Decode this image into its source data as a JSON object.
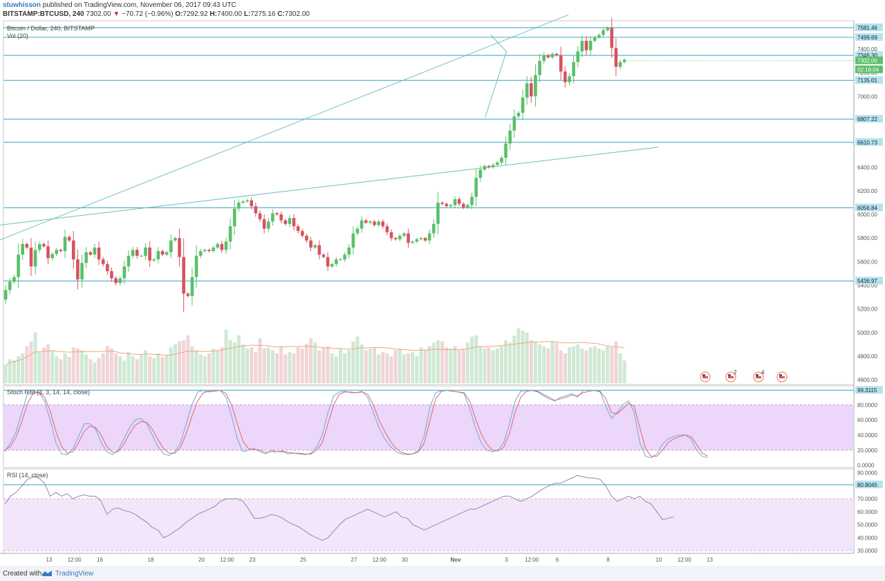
{
  "header": {
    "author": "stuwhisson",
    "published_text": "published on TradingView.com, November 06, 2017 09:43 UTC",
    "symbol": "BITSTAMP:BTCUSD, 240",
    "last": "7302.00",
    "change": "−70.72 (−0.96%)",
    "ohlc_o_label": "O:",
    "ohlc_o": "7292.92",
    "ohlc_h_label": "H:",
    "ohlc_h": "7400.00",
    "ohlc_l_label": "L:",
    "ohlc_l": "7275.16",
    "ohlc_c_label": "C:",
    "ohlc_c": "7302.00"
  },
  "footer": {
    "created": "Created with",
    "brand": "TradingView"
  },
  "colors": {
    "up": "#5bbf6b",
    "down": "#d8525f",
    "hline": "#58b5c9",
    "trend": "#6cc0b3",
    "band": "#e9cff8",
    "band2": "#f3e3fa"
  },
  "chart_data": [
    {
      "type": "candlestick",
      "title": "Bitcoin / Dollar, 240, BITSTAMP",
      "volume_label": "Vol (20)",
      "ylim": [
        4560,
        7640
      ],
      "y_ticks": [
        4600,
        4800,
        5000,
        5200,
        5400,
        5600,
        5800,
        6000,
        6200,
        6400,
        7000,
        7200,
        7400
      ],
      "x_ticks": [
        {
          "day": 0,
          "label": "13"
        },
        {
          "day": 0.5,
          "label": "12:00"
        },
        {
          "day": 1,
          "label": "16"
        },
        {
          "day": 2,
          "label": "18"
        },
        {
          "day": 3,
          "label": "20"
        },
        {
          "day": 3.5,
          "label": "12:00"
        },
        {
          "day": 4,
          "label": "23"
        },
        {
          "day": 5,
          "label": "25"
        },
        {
          "day": 6,
          "label": "27"
        },
        {
          "day": 6.5,
          "label": "12:00"
        },
        {
          "day": 7,
          "label": "30"
        },
        {
          "day": 8,
          "label": "Nov"
        },
        {
          "day": 9,
          "label": "3"
        },
        {
          "day": 9.5,
          "label": "12:00"
        },
        {
          "day": 10,
          "label": "6"
        },
        {
          "day": 11,
          "label": "8"
        },
        {
          "day": 12,
          "label": "10"
        },
        {
          "day": 12.5,
          "label": "12:00"
        },
        {
          "day": 13,
          "label": "13"
        }
      ],
      "horizontal_levels": [
        7581.46,
        7499.69,
        7346.3,
        7135.01,
        6807.22,
        6610.73,
        6056.84,
        5436.97
      ],
      "current_price": 7302.0,
      "countdown": "02:16:04",
      "trendlines": [
        {
          "from": [
            -1.76,
            5650
          ],
          "to": [
            10.22,
            7690
          ]
        },
        {
          "from": [
            -1.76,
            5870
          ],
          "to": [
            11.99,
            6570
          ]
        }
      ],
      "pennant": {
        "apex": [
          9.0,
          7380
        ],
        "top": [
          8.69,
          7520
        ],
        "bottom": [
          8.58,
          6820
        ]
      },
      "close": [
        5360,
        5430,
        5470,
        5660,
        5750,
        5720,
        5560,
        5700,
        5750,
        5730,
        5630,
        5665,
        5700,
        5690,
        5810,
        5780,
        5620,
        5450,
        5590,
        5680,
        5660,
        5720,
        5620,
        5580,
        5520,
        5460,
        5420,
        5460,
        5560,
        5650,
        5700,
        5650,
        5650,
        5720,
        5610,
        5620,
        5690,
        5660,
        5680,
        5780,
        5800,
        5640,
        5330,
        5310,
        5470,
        5650,
        5690,
        5700,
        5690,
        5720,
        5750,
        5700,
        5770,
        5900,
        6050,
        6100,
        6110,
        6120,
        6070,
        6010,
        5960,
        5880,
        5940,
        6010,
        6000,
        5950,
        5920,
        5970,
        5900,
        5860,
        5820,
        5780,
        5720,
        5740,
        5660,
        5640,
        5560,
        5580,
        5620,
        5620,
        5660,
        5720,
        5840,
        5880,
        5950,
        5930,
        5940,
        5910,
        5940,
        5900,
        5850,
        5800,
        5790,
        5820,
        5840,
        5760,
        5770,
        5790,
        5800,
        5780,
        5840,
        5920,
        6100,
        6090,
        6070,
        6080,
        6130,
        6090,
        6060,
        6080,
        6150,
        6310,
        6380,
        6410,
        6400,
        6420,
        6440,
        6480,
        6600,
        6710,
        6830,
        6860,
        6990,
        7110,
        7000,
        7180,
        7300,
        7350,
        7330,
        7360,
        7350,
        7210,
        7120,
        7170,
        7290,
        7380,
        7470,
        7390,
        7470,
        7500,
        7520,
        7560,
        7580,
        7410,
        7250,
        7290,
        7310
      ],
      "volume_scale": [
        0,
        2.2
      ],
      "volume": [
        0.3,
        0.4,
        0.38,
        0.45,
        0.5,
        0.62,
        0.7,
        0.85,
        0.52,
        0.6,
        0.65,
        0.55,
        0.45,
        0.4,
        0.5,
        0.44,
        0.6,
        0.58,
        0.55,
        0.48,
        0.4,
        0.35,
        0.42,
        0.5,
        0.62,
        0.58,
        0.5,
        0.45,
        0.38,
        0.52,
        0.45,
        0.4,
        0.48,
        0.55,
        0.45,
        0.42,
        0.5,
        0.44,
        0.47,
        0.6,
        0.65,
        0.7,
        0.72,
        0.8,
        0.62,
        0.55,
        0.48,
        0.45,
        0.5,
        0.58,
        0.55,
        0.6,
        0.9,
        0.72,
        0.68,
        0.8,
        0.65,
        0.58,
        0.6,
        0.52,
        0.75,
        0.58,
        0.6,
        0.55,
        0.5,
        0.62,
        0.48,
        0.52,
        0.5,
        0.6,
        0.58,
        0.66,
        0.75,
        0.68,
        0.55,
        0.6,
        0.62,
        0.5,
        0.45,
        0.58,
        0.5,
        0.55,
        0.7,
        0.78,
        0.65,
        0.55,
        0.58,
        0.6,
        0.48,
        0.52,
        0.5,
        0.45,
        0.55,
        0.58,
        0.48,
        0.5,
        0.52,
        0.45,
        0.6,
        0.55,
        0.62,
        0.68,
        0.72,
        0.7,
        0.6,
        0.58,
        0.62,
        0.55,
        0.58,
        0.68,
        0.78,
        0.8,
        0.62,
        0.58,
        0.6,
        0.55,
        0.58,
        0.62,
        0.72,
        0.68,
        0.8,
        0.92,
        0.88,
        0.85,
        0.72,
        0.7,
        0.65,
        0.62,
        0.58,
        0.7,
        0.68,
        0.55,
        0.5,
        0.6,
        0.62,
        0.65,
        0.58,
        0.55,
        0.6,
        0.62,
        0.58,
        0.55,
        0.62,
        0.6,
        0.7,
        0.5,
        0.38
      ],
      "event_flags": [
        "",
        "2",
        "4",
        ""
      ]
    },
    {
      "type": "line",
      "title": "Stoch RSI (3, 3, 14, 14, close)",
      "ylim": [
        -3,
        105
      ],
      "y_ticks": [
        0,
        20,
        40,
        60,
        80
      ],
      "band": [
        20,
        80
      ],
      "last_value": 99.3115,
      "series": [
        {
          "name": "%K",
          "color": "#6fa8dc",
          "values": [
            18,
            30,
            45,
            70,
            95,
            98,
            96,
            85,
            60,
            30,
            15,
            14,
            22,
            38,
            55,
            55,
            48,
            30,
            18,
            14,
            20,
            35,
            50,
            60,
            62,
            55,
            40,
            25,
            15,
            13,
            18,
            30,
            55,
            80,
            97,
            99,
            97,
            99,
            99,
            90,
            65,
            35,
            18,
            20,
            22,
            18,
            15,
            20,
            18,
            18,
            15,
            16,
            15,
            14,
            16,
            24,
            40,
            70,
            92,
            97,
            98,
            96,
            96,
            98,
            90,
            70,
            50,
            35,
            25,
            18,
            15,
            14,
            15,
            20,
            40,
            78,
            96,
            99,
            99,
            98,
            97,
            95,
            75,
            50,
            30,
            20,
            18,
            20,
            30,
            55,
            85,
            98,
            99,
            99,
            97,
            92,
            88,
            85,
            90,
            92,
            95,
            90,
            99,
            99,
            99,
            97,
            78,
            62,
            70,
            80,
            85,
            70,
            30,
            12,
            10,
            15,
            28,
            35,
            38,
            40,
            40,
            35,
            20,
            12,
            10
          ]
        },
        {
          "name": "%D",
          "color": "#e06666",
          "values": [
            20,
            25,
            38,
            58,
            82,
            95,
            97,
            90,
            72,
            45,
            25,
            16,
            18,
            30,
            45,
            52,
            50,
            40,
            25,
            17,
            18,
            28,
            42,
            53,
            58,
            57,
            48,
            34,
            22,
            16,
            16,
            24,
            42,
            65,
            85,
            96,
            98,
            98,
            99,
            95,
            80,
            55,
            32,
            22,
            21,
            20,
            17,
            18,
            18,
            19,
            17,
            16,
            16,
            15,
            15,
            20,
            30,
            55,
            80,
            94,
            97,
            97,
            96,
            97,
            94,
            80,
            60,
            45,
            32,
            22,
            17,
            15,
            15,
            18,
            30,
            60,
            88,
            98,
            99,
            98,
            97,
            96,
            85,
            62,
            42,
            28,
            20,
            19,
            24,
            42,
            70,
            90,
            98,
            99,
            98,
            94,
            90,
            86,
            88,
            90,
            93,
            92,
            96,
            98,
            99,
            98,
            88,
            70,
            68,
            75,
            82,
            78,
            50,
            22,
            12,
            12,
            20,
            30,
            35,
            38,
            40,
            38,
            28,
            16,
            12
          ]
        }
      ]
    },
    {
      "type": "line",
      "title": "RSI (14, close)",
      "ylim": [
        28,
        93
      ],
      "y_ticks": [
        30,
        40,
        50,
        60,
        70,
        80,
        90
      ],
      "band": [
        30,
        70
      ],
      "level": 80.8045,
      "series": [
        {
          "name": "RSI",
          "color": "#8e88a6",
          "values": [
            66,
            72,
            75,
            80,
            85,
            87,
            86,
            82,
            72,
            75,
            72,
            74,
            70,
            72,
            73,
            72,
            72,
            68,
            58,
            62,
            63,
            61,
            60,
            58,
            55,
            52,
            48,
            46,
            40,
            42,
            45,
            48,
            52,
            55,
            58,
            60,
            62,
            64,
            68,
            70,
            70,
            70,
            68,
            62,
            55,
            55,
            56,
            58,
            57,
            55,
            52,
            50,
            48,
            45,
            42,
            40,
            38,
            40,
            45,
            50,
            54,
            56,
            58,
            60,
            62,
            60,
            58,
            56,
            58,
            60,
            56,
            55,
            50,
            48,
            46,
            48,
            50,
            52,
            54,
            56,
            58,
            60,
            62,
            62,
            64,
            66,
            68,
            70,
            72,
            72,
            70,
            68,
            70,
            72,
            75,
            78,
            80,
            82,
            82,
            84,
            86,
            88,
            87,
            86,
            86,
            85,
            80,
            72,
            68,
            70,
            72,
            70,
            72,
            68,
            66,
            60,
            54,
            55,
            56
          ]
        }
      ]
    }
  ]
}
